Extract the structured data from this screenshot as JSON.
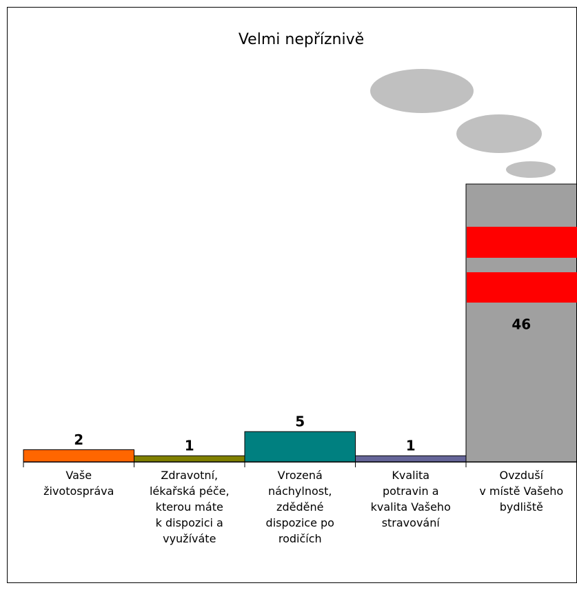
{
  "chart_data": {
    "type": "bar",
    "title": "Velmi nepříznivě",
    "categories": [
      "Vaše\nživotospráva",
      "Zdravotní,\nlékařská péče,\nkterou máte\nk dispozici a\nvyužíváte",
      "Vrozená\nnáchylnost,\nzděděné\ndispozice po\nrodičích",
      "Kvalita\npotravin a\nkvalita Vašeho\nstravování",
      "Ovzduší\nv místě Vašeho\nbydliště"
    ],
    "values": [
      2,
      1,
      5,
      1,
      46
    ],
    "colors": [
      "#ff6600",
      "#808000",
      "#008080",
      "#666699",
      "#a0a0a0"
    ]
  }
}
